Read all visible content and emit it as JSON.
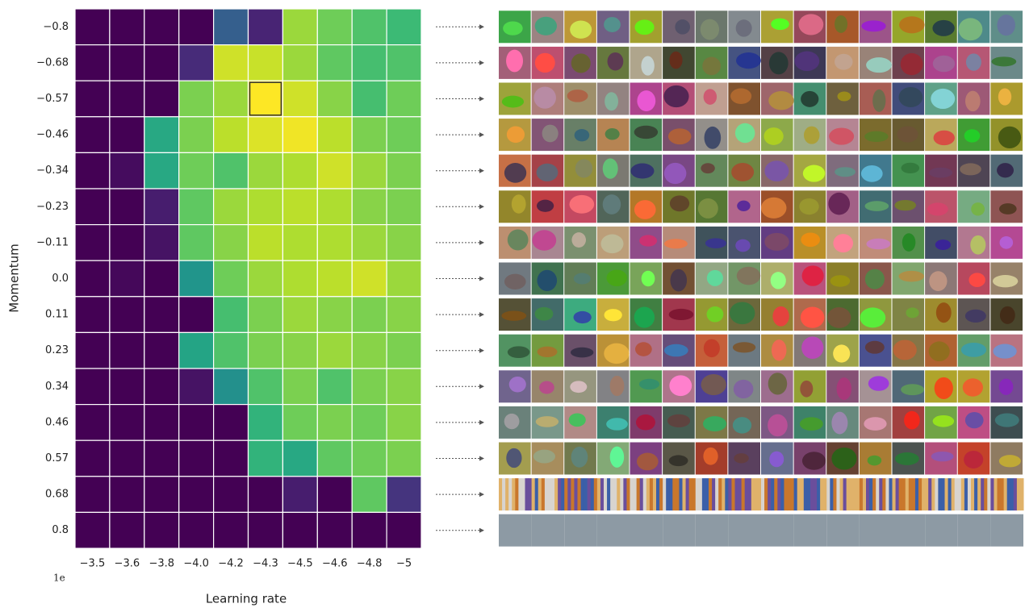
{
  "chart_data": {
    "type": "heatmap",
    "x_label": "Learning rate",
    "y_label": "Momentum",
    "x_offset_label": "1e",
    "x_categories": [
      "−3.5",
      "−3.6",
      "−3.8",
      "−4.0",
      "−4.2",
      "−4.3",
      "−4.5",
      "−4.6",
      "−4.8",
      "−5"
    ],
    "y_categories": [
      "−0.8",
      "−0.68",
      "−0.57",
      "−0.46",
      "−0.34",
      "−0.23",
      "−0.11",
      "0.0",
      "0.11",
      "0.23",
      "0.34",
      "0.46",
      "0.57",
      "0.68",
      "0.8"
    ],
    "z": [
      [
        0,
        0,
        0,
        0,
        0.3,
        0.1,
        0.85,
        0.78,
        0.72,
        0.68
      ],
      [
        0,
        0,
        0,
        0.12,
        0.93,
        0.92,
        0.85,
        0.75,
        0.7,
        0.72
      ],
      [
        0,
        0,
        0,
        0.8,
        0.85,
        1.0,
        0.93,
        0.82,
        0.7,
        0.78
      ],
      [
        0,
        0,
        0.6,
        0.8,
        0.9,
        0.95,
        0.98,
        0.9,
        0.8,
        0.78
      ],
      [
        0,
        0.03,
        0.6,
        0.78,
        0.72,
        0.85,
        0.88,
        0.93,
        0.85,
        0.8
      ],
      [
        0,
        0,
        0.08,
        0.75,
        0.85,
        0.88,
        0.9,
        0.88,
        0.82,
        0.8
      ],
      [
        0,
        0,
        0.05,
        0.75,
        0.82,
        0.9,
        0.88,
        0.88,
        0.85,
        0.82
      ],
      [
        0,
        0.02,
        0,
        0.52,
        0.78,
        0.85,
        0.88,
        0.9,
        0.93,
        0.85
      ],
      [
        0,
        0,
        0,
        0,
        0.7,
        0.8,
        0.85,
        0.82,
        0.8,
        0.82
      ],
      [
        0,
        0,
        0,
        0.58,
        0.72,
        0.8,
        0.82,
        0.85,
        0.82,
        0.8
      ],
      [
        0,
        0,
        0,
        0.05,
        0.5,
        0.72,
        0.8,
        0.72,
        0.8,
        0.82
      ],
      [
        0,
        0,
        0,
        0,
        0,
        0.65,
        0.78,
        0.8,
        0.78,
        0.82
      ],
      [
        0,
        0,
        0,
        0,
        0,
        0.65,
        0.6,
        0.75,
        0.78,
        0.8
      ],
      [
        0,
        0,
        0,
        0,
        0,
        0,
        0.08,
        0,
        0.75,
        0.15
      ],
      [
        0,
        0,
        0,
        0,
        0,
        0,
        0,
        0,
        0,
        0
      ]
    ],
    "zlim": [
      0,
      1
    ],
    "colormap": "viridis",
    "highlight_cell": {
      "row": 2,
      "col": 5
    }
  }
}
